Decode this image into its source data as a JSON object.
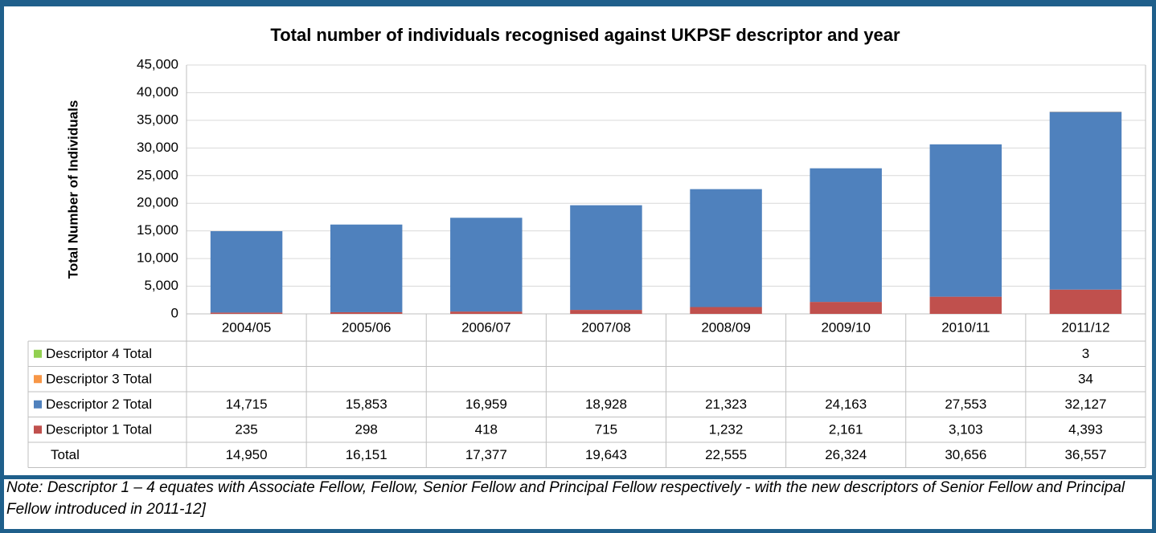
{
  "chart_data": {
    "type": "stacked_bar",
    "title": "Total number of individuals recognised against UKPSF descriptor and year",
    "y_label": "Total Number of Individuals",
    "categories": [
      "2004/05",
      "2005/06",
      "2006/07",
      "2007/08",
      "2008/09",
      "2009/10",
      "2010/11",
      "2011/12"
    ],
    "series": [
      {
        "name": "Descriptor 4 Total",
        "color": "#92d050",
        "values": [
          null,
          null,
          null,
          null,
          null,
          null,
          null,
          3
        ]
      },
      {
        "name": "Descriptor 3 Total",
        "color": "#f79646",
        "values": [
          null,
          null,
          null,
          null,
          null,
          null,
          null,
          34
        ]
      },
      {
        "name": "Descriptor 2 Total",
        "color": "#4f81bd",
        "values": [
          14715,
          15853,
          16959,
          18928,
          21323,
          24163,
          27553,
          32127
        ],
        "value_labels": [
          "14,715",
          "15,853",
          "16,959",
          "18,928",
          "21,323",
          "24,163",
          "27,553",
          "32,127"
        ]
      },
      {
        "name": "Descriptor 1 Total",
        "color": "#c0504d",
        "values": [
          235,
          298,
          418,
          715,
          1232,
          2161,
          3103,
          4393
        ],
        "value_labels": [
          "235",
          "298",
          "418",
          "715",
          "1,232",
          "2,161",
          "3,103",
          "4,393"
        ]
      }
    ],
    "totals": {
      "name": "Total",
      "values": [
        14950,
        16151,
        17377,
        19643,
        22555,
        26324,
        30656,
        36557
      ],
      "value_labels": [
        "14,950",
        "16,151",
        "17,377",
        "19,643",
        "22,555",
        "26,324",
        "30,656",
        "36,557"
      ]
    },
    "ylim": [
      0,
      45000
    ],
    "yticks": [
      0,
      {
        "value": 5000,
        "label": "5,000"
      },
      {
        "value": 10000,
        "label": "10,000"
      },
      {
        "value": 15000,
        "label": "15,000"
      },
      {
        "value": 20000,
        "label": "20,000"
      },
      {
        "value": 25000,
        "label": "25,000"
      },
      {
        "value": 30000,
        "label": "30,000"
      },
      {
        "value": 35000,
        "label": "35,000"
      },
      {
        "value": 40000,
        "label": "40,000"
      },
      {
        "value": 45000,
        "label": "45,000"
      }
    ],
    "grid": true
  },
  "note": "Note: Descriptor 1 – 4 equates with Associate Fellow, Fellow, Senior Fellow and Principal Fellow respectively - with the new descriptors of Senior Fellow and Principal Fellow introduced in 2011-12]"
}
